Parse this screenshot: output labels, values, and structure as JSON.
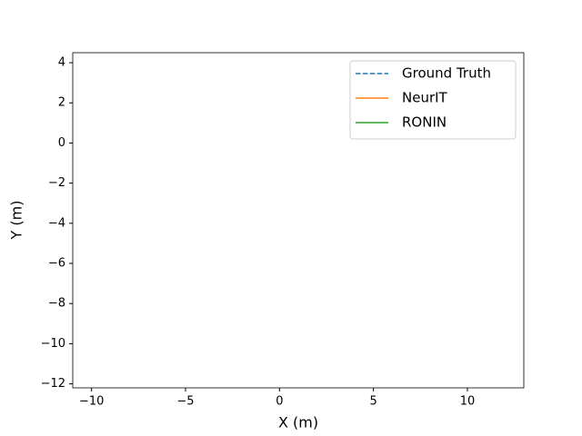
{
  "chart_data": {
    "type": "line",
    "x_label": "X (m)",
    "y_label": "Y (m)",
    "x": [],
    "series": [
      {
        "name": "Ground Truth",
        "color": "#1f77b4",
        "linestyle": "dashed",
        "values": []
      },
      {
        "name": "NeurIT",
        "color": "#ff7f0e",
        "linestyle": "solid",
        "values": []
      },
      {
        "name": "RONIN",
        "color": "#2ca02c",
        "linestyle": "solid",
        "values": []
      }
    ],
    "xlim": [
      -11,
      13
    ],
    "xticks": [
      {
        "value": -10,
        "label": "−10"
      },
      {
        "value": -5,
        "label": "−5"
      },
      0,
      5,
      10
    ],
    "ylim": [
      -12.2,
      4.5
    ],
    "yticks": [
      {
        "value": -12,
        "label": "−12"
      },
      {
        "value": -10,
        "label": "−10"
      },
      {
        "value": -8,
        "label": "−8"
      },
      {
        "value": -6,
        "label": "−6"
      },
      {
        "value": -4,
        "label": "−4"
      },
      {
        "value": -2,
        "label": "−2"
      },
      0,
      2,
      4
    ],
    "legend": "upper right",
    "grid": false
  }
}
